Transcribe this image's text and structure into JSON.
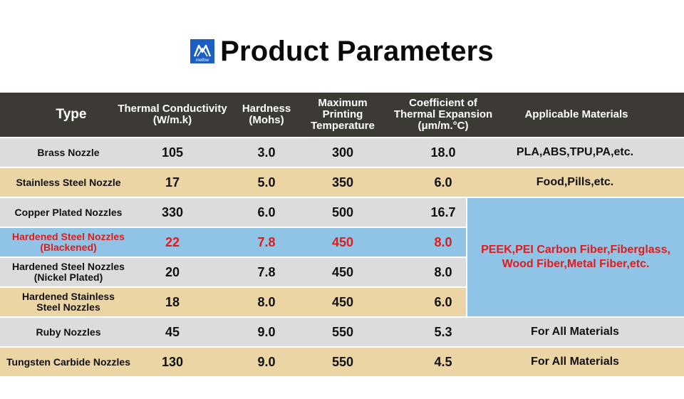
{
  "title": "Product Parameters",
  "logo": {
    "icon": "mellow-logo-icon",
    "text": "mellow",
    "color": "#1b5fc4"
  },
  "headers": {
    "type": "Type",
    "thermal": "Thermal Conductivity\n(W/m.k)",
    "hardness": "Hardness\n(Mohs)",
    "maxtemp": "Maximum\nPrinting\nTemperature",
    "cte": "Coefficient of\nThermal Expansion\n(μm/m.°C)",
    "materials": "Applicable Materials"
  },
  "rows": [
    {
      "type": "Brass Nozzle",
      "thermal": "105",
      "hardness": "3.0",
      "maxtemp": "300",
      "cte": "18.0",
      "materials": "PLA,ABS,TPU,PA,etc.",
      "bg": "gray",
      "highlight": false
    },
    {
      "type": "Stainless Steel Nozzle",
      "thermal": "17",
      "hardness": "5.0",
      "maxtemp": "350",
      "cte": "6.0",
      "materials": "Food,Pills,etc.",
      "bg": "tan",
      "highlight": false
    },
    {
      "type": "Copper Plated Nozzles",
      "thermal": "330",
      "hardness": "6.0",
      "maxtemp": "500",
      "cte": "16.7",
      "materials": "",
      "bg": "gray",
      "highlight": false
    },
    {
      "type": "Hardened Steel Nozzles\n(Blackened)",
      "thermal": "22",
      "hardness": "7.8",
      "maxtemp": "450",
      "cte": "8.0",
      "materials": "",
      "bg": "blue",
      "highlight": true
    },
    {
      "type": "Hardened Steel Nozzles\n(Nickel Plated)",
      "thermal": "20",
      "hardness": "7.8",
      "maxtemp": "450",
      "cte": "8.0",
      "materials": "",
      "bg": "gray",
      "highlight": false
    },
    {
      "type": "Hardened Stainless\nSteel Nozzles",
      "thermal": "18",
      "hardness": "8.0",
      "maxtemp": "450",
      "cte": "6.0",
      "materials": "",
      "bg": "tan",
      "highlight": false
    },
    {
      "type": "Ruby Nozzles",
      "thermal": "45",
      "hardness": "9.0",
      "maxtemp": "550",
      "cte": "5.3",
      "materials": "For All Materials",
      "bg": "gray",
      "highlight": false
    },
    {
      "type": "Tungsten Carbide Nozzles",
      "thermal": "130",
      "hardness": "9.0",
      "maxtemp": "550",
      "cte": "4.5",
      "materials": "For All Materials",
      "bg": "tan",
      "highlight": false
    }
  ],
  "merged_materials": "PEEK,PEI Carbon Fiber,Fiberglass,\nWood Fiber,Metal Fiber,etc.",
  "colors": {
    "header_bg": "#3d3a36",
    "gray_row": "#dcdcdc",
    "tan_row": "#ebd5a5",
    "blue_row": "#8fc4e6",
    "highlight_text": "#e21b1b"
  }
}
